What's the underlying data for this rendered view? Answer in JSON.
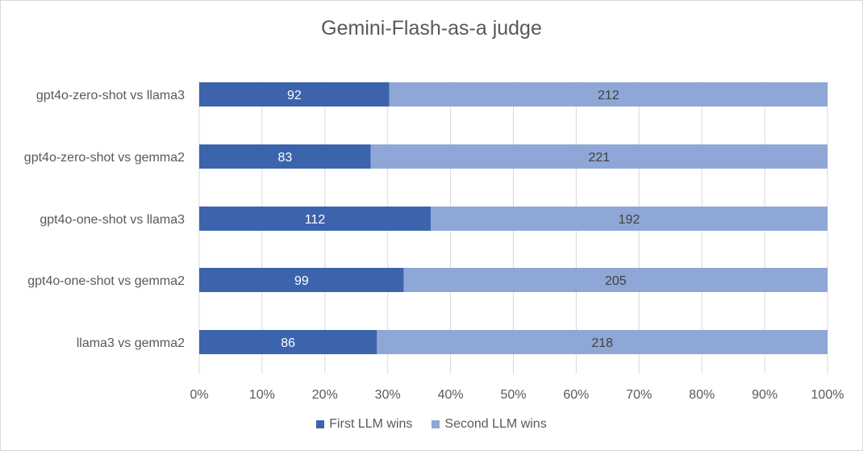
{
  "chart_data": {
    "type": "bar",
    "orientation": "horizontal",
    "stacked": "percent",
    "title": "Gemini-Flash-as-a judge",
    "categories": [
      "gpt4o-zero-shot vs llama3",
      "gpt4o-zero-shot vs gemma2",
      "gpt4o-one-shot vs llama3",
      "gpt4o-one-shot vs gemma2",
      "llama3 vs gemma2"
    ],
    "series": [
      {
        "name": "First LLM wins",
        "values": [
          92,
          83,
          112,
          99,
          86
        ],
        "color": "#3c64ad"
      },
      {
        "name": "Second LLM wins",
        "values": [
          212,
          221,
          192,
          205,
          218
        ],
        "color": "#8fa7d6"
      }
    ],
    "x_ticks": [
      "0%",
      "10%",
      "20%",
      "30%",
      "40%",
      "50%",
      "60%",
      "70%",
      "80%",
      "90%",
      "100%"
    ],
    "xlim": [
      0,
      100
    ],
    "grid": true,
    "legend_position": "bottom"
  }
}
